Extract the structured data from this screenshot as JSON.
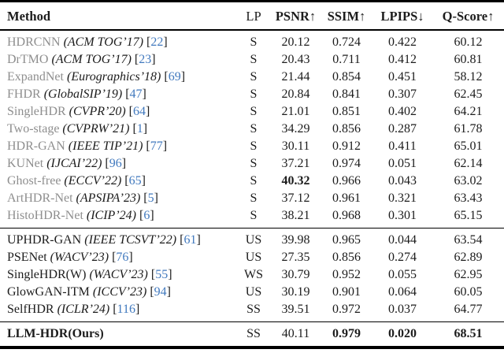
{
  "colors": {
    "text": "#1c1c1c",
    "dim_method": "#8e8e8e",
    "citation": "#4179be",
    "rule": "#000000",
    "background": "#ffffff"
  },
  "header": {
    "cells": [
      {
        "key": "method",
        "label": "Method",
        "bold": true
      },
      {
        "key": "lp",
        "label": "LP",
        "bold": false
      },
      {
        "key": "psnr",
        "label": "PSNR↑",
        "bold": true
      },
      {
        "key": "ssim",
        "label": "SSIM↑",
        "bold": true
      },
      {
        "key": "lpips",
        "label": "LPIPS↓",
        "bold": true
      },
      {
        "key": "qscore",
        "label": "Q-Score↑",
        "bold": true
      }
    ]
  },
  "groups": [
    {
      "name": "supervised-methods",
      "rows": [
        {
          "method": "HDRCNN",
          "venue": "ACM TOG’17",
          "cite": "22",
          "lp": "S",
          "psnr": "20.12",
          "ssim": "0.724",
          "lpips": "0.422",
          "qscore": "60.12",
          "dim_name": true,
          "bold": []
        },
        {
          "method": "DrTMO",
          "venue": "ACM TOG’17",
          "cite": "23",
          "lp": "S",
          "psnr": "20.43",
          "ssim": "0.711",
          "lpips": "0.412",
          "qscore": "60.81",
          "dim_name": true,
          "bold": []
        },
        {
          "method": "ExpandNet",
          "venue": "Eurographics’18",
          "cite": "69",
          "lp": "S",
          "psnr": "21.44",
          "ssim": "0.854",
          "lpips": "0.451",
          "qscore": "58.12",
          "dim_name": true,
          "bold": []
        },
        {
          "method": "FHDR",
          "venue": "GlobalSIP’19",
          "cite": "47",
          "lp": "S",
          "psnr": "20.84",
          "ssim": "0.841",
          "lpips": "0.307",
          "qscore": "62.45",
          "dim_name": true,
          "bold": []
        },
        {
          "method": "SingleHDR",
          "venue": "CVPR’20",
          "cite": "64",
          "lp": "S",
          "psnr": "21.01",
          "ssim": "0.851",
          "lpips": "0.402",
          "qscore": "64.21",
          "dim_name": true,
          "bold": []
        },
        {
          "method": "Two-stage",
          "venue": "CVPRW’21",
          "cite": "1",
          "lp": "S",
          "psnr": "34.29",
          "ssim": "0.856",
          "lpips": "0.287",
          "qscore": "61.78",
          "dim_name": true,
          "bold": []
        },
        {
          "method": "HDR-GAN",
          "venue": "IEEE TIP’21",
          "cite": "77",
          "lp": "S",
          "psnr": "30.11",
          "ssim": "0.912",
          "lpips": "0.411",
          "qscore": "65.01",
          "dim_name": true,
          "bold": []
        },
        {
          "method": "KUNet",
          "venue": "IJCAI’22",
          "cite": "96",
          "lp": "S",
          "psnr": "37.21",
          "ssim": "0.974",
          "lpips": "0.051",
          "qscore": "62.14",
          "dim_name": true,
          "bold": []
        },
        {
          "method": "Ghost-free",
          "venue": "ECCV’22",
          "cite": "65",
          "lp": "S",
          "psnr": "40.32",
          "ssim": "0.966",
          "lpips": "0.043",
          "qscore": "63.02",
          "dim_name": true,
          "bold": [
            "psnr"
          ]
        },
        {
          "method": "ArtHDR-Net",
          "venue": "APSIPA’23",
          "cite": "5",
          "lp": "S",
          "psnr": "37.12",
          "ssim": "0.961",
          "lpips": "0.321",
          "qscore": "63.43",
          "dim_name": true,
          "bold": []
        },
        {
          "method": "HistoHDR-Net",
          "venue": "ICIP’24",
          "cite": "6",
          "lp": "S",
          "psnr": "38.21",
          "ssim": "0.968",
          "lpips": "0.301",
          "qscore": "65.15",
          "dim_name": true,
          "bold": []
        }
      ]
    },
    {
      "name": "weak-self-unsupervised-methods",
      "rows": [
        {
          "method": "UPHDR-GAN",
          "venue": "IEEE TCSVT’22",
          "cite": "61",
          "lp": "US",
          "psnr": "39.98",
          "ssim": "0.965",
          "lpips": "0.044",
          "qscore": "63.54",
          "dim_name": false,
          "bold": []
        },
        {
          "method": "PSENet",
          "venue": "WACV’23",
          "cite": "76",
          "lp": "US",
          "psnr": "27.35",
          "ssim": "0.856",
          "lpips": "0.274",
          "qscore": "62.89",
          "dim_name": false,
          "bold": []
        },
        {
          "method": "SingleHDR(W)",
          "venue": "WACV’23",
          "cite": "55",
          "lp": "WS",
          "psnr": "30.79",
          "ssim": "0.952",
          "lpips": "0.055",
          "qscore": "62.95",
          "dim_name": false,
          "bold": []
        },
        {
          "method": "GlowGAN-ITM",
          "venue": "ICCV’23",
          "cite": "94",
          "lp": "US",
          "psnr": "30.19",
          "ssim": "0.901",
          "lpips": "0.064",
          "qscore": "60.05",
          "dim_name": false,
          "bold": []
        },
        {
          "method": "SelfHDR",
          "venue": "ICLR’24",
          "cite": "116",
          "lp": "SS",
          "psnr": "39.51",
          "ssim": "0.972",
          "lpips": "0.037",
          "qscore": "64.77",
          "dim_name": false,
          "bold": []
        }
      ]
    }
  ],
  "final": {
    "name": "ours-row",
    "rows": [
      {
        "method": "LLM-HDR",
        "suffix": "(Ours)",
        "venue": "",
        "cite": "",
        "lp": "SS",
        "psnr": "40.11",
        "ssim": "0.979",
        "lpips": "0.020",
        "qscore": "68.51",
        "dim_name": false,
        "bold": [
          "method",
          "ssim",
          "lpips",
          "qscore"
        ]
      }
    ]
  }
}
